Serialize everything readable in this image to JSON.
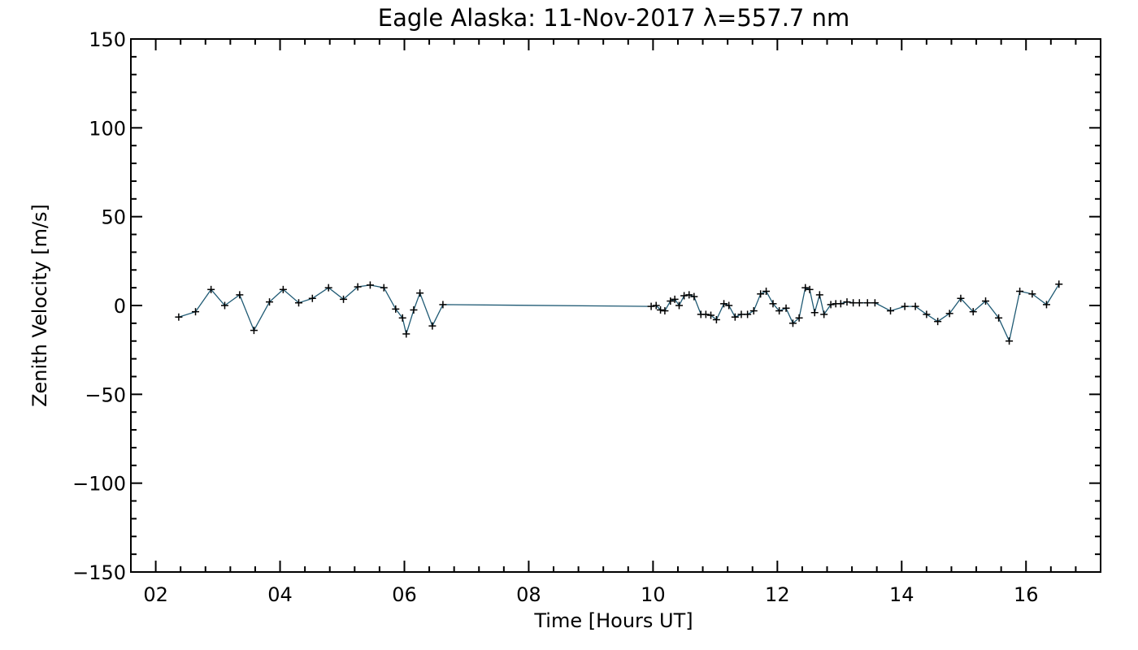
{
  "chart_data": {
    "type": "line",
    "title": "Eagle Alaska: 11-Nov-2017 λ=557.7 nm",
    "xlabel": "Time [Hours UT]",
    "ylabel": "Zenith Velocity [m/s]",
    "xlim": [
      1.6,
      17.2
    ],
    "ylim": [
      -150,
      150
    ],
    "xticks": [
      2,
      4,
      6,
      8,
      10,
      12,
      14,
      16
    ],
    "xtick_labels": [
      "02",
      "04",
      "06",
      "08",
      "10",
      "12",
      "14",
      "16"
    ],
    "xminor_step": 0.4,
    "yticks": [
      -150,
      -100,
      -50,
      0,
      50,
      100,
      150
    ],
    "ytick_labels": [
      "−150",
      "−100",
      "−50",
      "0",
      "50",
      "100",
      "150"
    ],
    "yminor_step": 10,
    "grid": false,
    "series": [
      {
        "line_color": "#1f5a74",
        "marker": "plus",
        "points": [
          [
            2.37,
            -6.5
          ],
          [
            2.64,
            -3.5
          ],
          [
            2.89,
            9
          ],
          [
            3.11,
            0
          ],
          [
            3.35,
            6
          ],
          [
            3.58,
            -14
          ],
          [
            3.83,
            2
          ],
          [
            4.05,
            9
          ],
          [
            4.3,
            1.5
          ],
          [
            4.52,
            4
          ],
          [
            4.78,
            10
          ],
          [
            5.02,
            3.5
          ],
          [
            5.25,
            10.5
          ],
          [
            5.45,
            11.5
          ],
          [
            5.67,
            10
          ],
          [
            5.86,
            -2
          ],
          [
            5.97,
            -7
          ],
          [
            6.03,
            -16
          ],
          [
            6.15,
            -2.5
          ],
          [
            6.25,
            7
          ],
          [
            6.45,
            -11.5
          ],
          [
            6.62,
            0.5
          ],
          [
            9.97,
            -0.5
          ],
          [
            10.05,
            0
          ],
          [
            10.12,
            -2.5
          ],
          [
            10.19,
            -3
          ],
          [
            10.28,
            2.5
          ],
          [
            10.35,
            3.5
          ],
          [
            10.42,
            0
          ],
          [
            10.5,
            5.5
          ],
          [
            10.58,
            6
          ],
          [
            10.66,
            5
          ],
          [
            10.77,
            -5
          ],
          [
            10.85,
            -5
          ],
          [
            10.93,
            -5.5
          ],
          [
            11.02,
            -8
          ],
          [
            11.14,
            1
          ],
          [
            11.22,
            0
          ],
          [
            11.32,
            -6.5
          ],
          [
            11.42,
            -5
          ],
          [
            11.52,
            -5
          ],
          [
            11.62,
            -3
          ],
          [
            11.73,
            6.5
          ],
          [
            11.82,
            8
          ],
          [
            11.93,
            1
          ],
          [
            12.03,
            -3
          ],
          [
            12.14,
            -1.5
          ],
          [
            12.25,
            -10
          ],
          [
            12.35,
            -7
          ],
          [
            12.45,
            10
          ],
          [
            12.52,
            9
          ],
          [
            12.6,
            -4
          ],
          [
            12.68,
            6
          ],
          [
            12.75,
            -5
          ],
          [
            12.86,
            0.5
          ],
          [
            12.94,
            1
          ],
          [
            13.02,
            1
          ],
          [
            13.12,
            2
          ],
          [
            13.22,
            1.5
          ],
          [
            13.32,
            1.5
          ],
          [
            13.45,
            1.5
          ],
          [
            13.57,
            1.5
          ],
          [
            13.82,
            -3
          ],
          [
            14.05,
            -0.5
          ],
          [
            14.22,
            -0.5
          ],
          [
            14.4,
            -5
          ],
          [
            14.58,
            -9
          ],
          [
            14.77,
            -4.5
          ],
          [
            14.95,
            4
          ],
          [
            15.15,
            -3.5
          ],
          [
            15.35,
            2.5
          ],
          [
            15.56,
            -7
          ],
          [
            15.73,
            -20
          ],
          [
            15.9,
            8
          ],
          [
            16.1,
            6.5
          ],
          [
            16.33,
            0.5
          ],
          [
            16.53,
            12
          ]
        ]
      }
    ]
  }
}
